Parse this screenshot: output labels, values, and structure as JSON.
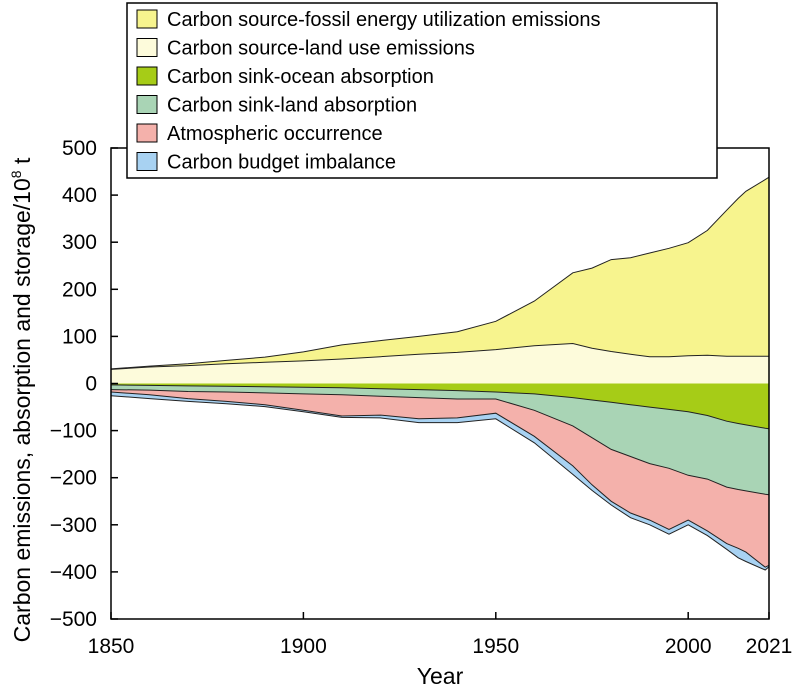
{
  "chart_data": {
    "type": "area",
    "title": "",
    "xlabel": "Year",
    "ylabel": "Carbon emissions, absorption and storage/10",
    "ylabel_superscript": "8",
    "ylabel_unit": " t",
    "xlim": [
      1850,
      2021
    ],
    "ylim": [
      -500,
      500
    ],
    "x_ticks": [
      1850,
      1900,
      1950,
      2000,
      2021
    ],
    "y_ticks": [
      500,
      400,
      300,
      200,
      100,
      0,
      -100,
      -200,
      -300,
      -400,
      -500
    ],
    "grid": false,
    "legend_position": "top",
    "x": [
      1850,
      1860,
      1870,
      1880,
      1890,
      1900,
      1910,
      1920,
      1930,
      1940,
      1950,
      1960,
      1970,
      1975,
      1980,
      1985,
      1990,
      1995,
      2000,
      2005,
      2010,
      2013,
      2015,
      2020,
      2021
    ],
    "series": [
      {
        "name": "Carbon source-fossil energy utilization emissions",
        "color": "#f7f48e",
        "values": [
          1,
          2,
          4,
          7,
          11,
          19,
          30,
          34,
          38,
          44,
          60,
          95,
          150,
          170,
          195,
          205,
          220,
          230,
          240,
          265,
          310,
          335,
          350,
          375,
          380
        ]
      },
      {
        "name": "Carbon source-land use emissions",
        "color": "#fdfbdb",
        "values": [
          30,
          35,
          38,
          42,
          45,
          48,
          52,
          57,
          62,
          66,
          72,
          80,
          85,
          75,
          68,
          62,
          57,
          57,
          59,
          60,
          58,
          58,
          58,
          58,
          58
        ]
      },
      {
        "name": "Carbon sink-ocean absorption",
        "color": "#a6cc17",
        "values": [
          -3,
          -4,
          -5,
          -6,
          -7,
          -8,
          -9,
          -11,
          -13,
          -15,
          -18,
          -22,
          -30,
          -35,
          -40,
          -45,
          -50,
          -55,
          -60,
          -68,
          -80,
          -85,
          -88,
          -95,
          -96
        ]
      },
      {
        "name": "Carbon sink-land absorption",
        "color": "#a9d4b5",
        "values": [
          -10,
          -10,
          -12,
          -12,
          -13,
          -14,
          -15,
          -16,
          -17,
          -18,
          -15,
          -35,
          -60,
          -80,
          -100,
          -110,
          -120,
          -125,
          -135,
          -135,
          -140,
          -140,
          -140,
          -140,
          -140
        ]
      },
      {
        "name": "Atmospheric occurrence",
        "color": "#f4b1ab",
        "values": [
          -5,
          -10,
          -15,
          -20,
          -25,
          -35,
          -45,
          -40,
          -45,
          -40,
          -30,
          -55,
          -85,
          -100,
          -110,
          -120,
          -120,
          -130,
          -95,
          -110,
          -120,
          -125,
          -130,
          -155,
          -150
        ]
      },
      {
        "name": "Carbon budget imbalance",
        "color": "#a8d2f2",
        "values": [
          -8,
          -8,
          -6,
          -5,
          -4,
          -3,
          -3,
          -6,
          -8,
          -10,
          -12,
          -14,
          -18,
          -12,
          -8,
          -10,
          -10,
          -10,
          -10,
          -10,
          -12,
          -20,
          -20,
          -6,
          -3
        ]
      }
    ]
  }
}
